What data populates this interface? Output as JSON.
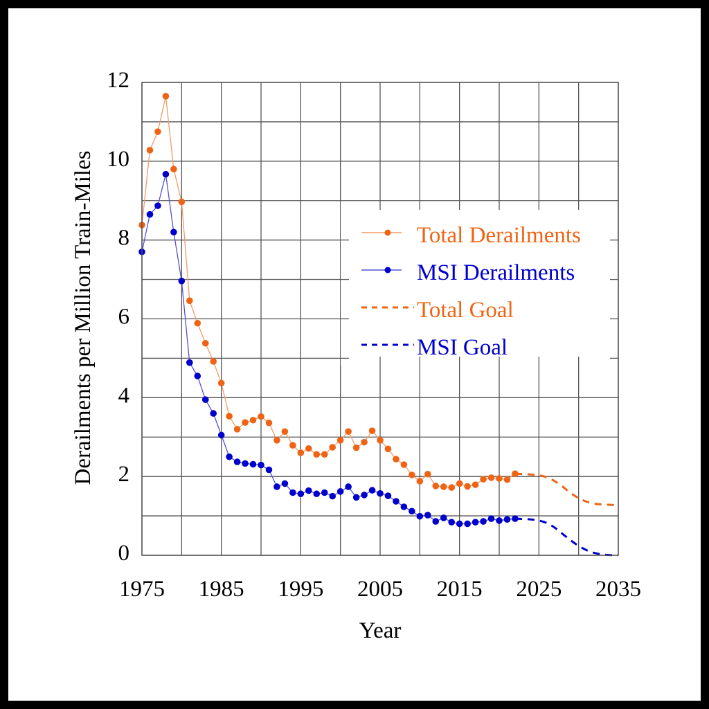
{
  "chart_data": {
    "type": "line",
    "title": "",
    "xlabel": "Year",
    "ylabel": "Derailments per Million Train-Miles",
    "xlim": [
      1975,
      2035
    ],
    "ylim": [
      0,
      12
    ],
    "x_ticks": [
      1975,
      1985,
      1995,
      2005,
      2015,
      2025,
      2035
    ],
    "x_tick_labels": [
      "1975",
      "1985",
      "1995",
      "2005",
      "2015",
      "2025",
      "2035"
    ],
    "x_grid_step": 5,
    "y_ticks": [
      0,
      2,
      4,
      6,
      8,
      10,
      12
    ],
    "y_tick_labels": [
      "0",
      "2",
      "4",
      "6",
      "8",
      "10",
      "12"
    ],
    "y_grid_step": 1,
    "grid": true,
    "legend_position": "center-right",
    "colors": {
      "orange": "#EF6414",
      "orange_line": "#F29A66",
      "blue": "#0000CC",
      "blue_line": "#5050D8"
    },
    "series": [
      {
        "name": "Total Derailments",
        "style": "line-markers",
        "color": "#EF6414",
        "x": [
          1975,
          1976,
          1977,
          1978,
          1979,
          1980,
          1981,
          1982,
          1983,
          1984,
          1985,
          1986,
          1987,
          1988,
          1989,
          1990,
          1991,
          1992,
          1993,
          1994,
          1995,
          1996,
          1997,
          1998,
          1999,
          2000,
          2001,
          2002,
          2003,
          2004,
          2005,
          2006,
          2007,
          2008,
          2009,
          2010,
          2011,
          2012,
          2013,
          2014,
          2015,
          2016,
          2017,
          2018,
          2019,
          2020,
          2021,
          2022
        ],
        "y": [
          8.38,
          10.28,
          10.75,
          11.65,
          9.8,
          8.97,
          6.46,
          5.89,
          5.38,
          4.92,
          4.37,
          3.53,
          3.2,
          3.37,
          3.43,
          3.52,
          3.36,
          2.92,
          3.14,
          2.79,
          2.6,
          2.71,
          2.56,
          2.56,
          2.74,
          2.92,
          3.14,
          2.73,
          2.87,
          3.16,
          2.92,
          2.7,
          2.44,
          2.3,
          2.04,
          1.88,
          2.06,
          1.76,
          1.74,
          1.72,
          1.82,
          1.75,
          1.79,
          1.93,
          1.97,
          1.95,
          1.92,
          2.07
        ]
      },
      {
        "name": "MSI Derailments",
        "style": "line-markers",
        "color": "#0000CC",
        "x": [
          1975,
          1976,
          1977,
          1978,
          1979,
          1980,
          1981,
          1982,
          1983,
          1984,
          1985,
          1986,
          1987,
          1988,
          1989,
          1990,
          1991,
          1992,
          1993,
          1994,
          1995,
          1996,
          1997,
          1998,
          1999,
          2000,
          2001,
          2002,
          2003,
          2004,
          2005,
          2006,
          2007,
          2008,
          2009,
          2010,
          2011,
          2012,
          2013,
          2014,
          2015,
          2016,
          2017,
          2018,
          2019,
          2020,
          2021,
          2022
        ],
        "y": [
          7.7,
          8.65,
          8.87,
          9.67,
          8.2,
          6.96,
          4.89,
          4.55,
          3.95,
          3.6,
          3.05,
          2.5,
          2.37,
          2.33,
          2.31,
          2.29,
          2.17,
          1.74,
          1.82,
          1.59,
          1.56,
          1.64,
          1.56,
          1.59,
          1.5,
          1.62,
          1.74,
          1.47,
          1.53,
          1.65,
          1.57,
          1.51,
          1.37,
          1.23,
          1.12,
          0.99,
          1.02,
          0.86,
          0.95,
          0.84,
          0.8,
          0.8,
          0.84,
          0.86,
          0.93,
          0.88,
          0.91,
          0.93
        ]
      },
      {
        "name": "Total Goal",
        "style": "dashed",
        "color": "#EF6414",
        "x": [
          2022,
          2023,
          2024,
          2025,
          2026,
          2027,
          2028,
          2029,
          2030,
          2031,
          2032,
          2033,
          2034,
          2035
        ],
        "y": [
          2.07,
          2.06,
          2.05,
          2.03,
          1.98,
          1.88,
          1.74,
          1.58,
          1.45,
          1.36,
          1.31,
          1.29,
          1.28,
          1.27
        ]
      },
      {
        "name": "MSI Goal",
        "style": "dashed",
        "color": "#0000CC",
        "x": [
          2022,
          2023,
          2024,
          2025,
          2026,
          2027,
          2028,
          2029,
          2030,
          2031,
          2032,
          2033,
          2034,
          2035
        ],
        "y": [
          0.93,
          0.92,
          0.91,
          0.88,
          0.82,
          0.7,
          0.54,
          0.38,
          0.24,
          0.13,
          0.06,
          0.02,
          0.005,
          0
        ]
      }
    ]
  }
}
